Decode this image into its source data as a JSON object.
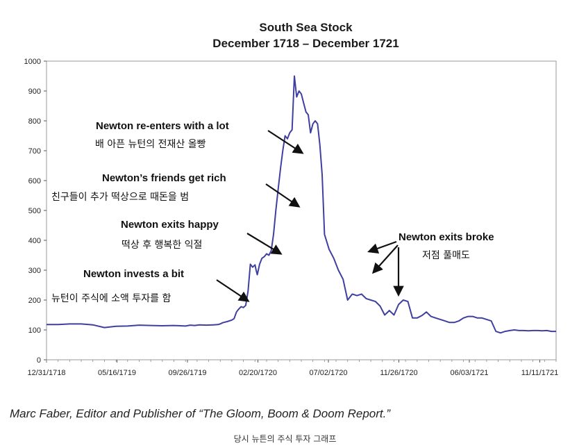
{
  "chart_data": {
    "type": "line",
    "title": "South Sea Stock",
    "subtitle": "December 1718 – December 1721",
    "xlabel": "",
    "ylabel": "",
    "ylim": [
      0,
      1000
    ],
    "yticks": [
      0,
      100,
      200,
      300,
      400,
      500,
      600,
      700,
      800,
      900,
      1000
    ],
    "xticks": [
      "12/31/1718",
      "05/16/1719",
      "09/26/1719",
      "02/20/1720",
      "07/02/1720",
      "11/26/1720",
      "06/03/1721",
      "11/11/1721"
    ],
    "grid": false,
    "line_color": "#3f3fa0",
    "series": [
      {
        "x": [
          0,
          0.5,
          1.0,
          1.5,
          2.0,
          2.5,
          3.0,
          3.5,
          4.0,
          4.5,
          5.0,
          5.5,
          6.0,
          6.2,
          6.4,
          6.6,
          6.9,
          7.2,
          7.4,
          7.5,
          7.6,
          7.7,
          7.8,
          8.0,
          8.1,
          8.2,
          8.3,
          8.4,
          8.5,
          8.6,
          8.7,
          8.8,
          8.9,
          9.0,
          9.05,
          9.1,
          9.2,
          9.3,
          9.4,
          9.5,
          9.6,
          9.7,
          9.8,
          9.9,
          10.0,
          10.1,
          10.2,
          10.3,
          10.4,
          10.5,
          10.6,
          10.7,
          10.8,
          10.9,
          11.0,
          11.1,
          11.2,
          11.3,
          11.4,
          11.5,
          11.6,
          11.7,
          11.8,
          11.9,
          12.0,
          12.2,
          12.4,
          12.6,
          12.8,
          13.0,
          13.2,
          13.4,
          13.6,
          13.8,
          14.0,
          14.2,
          14.4,
          14.6,
          14.8,
          15.0,
          15.2,
          15.4,
          15.6,
          15.8,
          16.0,
          16.2,
          16.4,
          16.6,
          16.8,
          17.0,
          17.2,
          17.4,
          17.6,
          17.8,
          18.0,
          18.2,
          18.4,
          18.6,
          18.8,
          19.0,
          19.2,
          19.4,
          19.6,
          19.8,
          20.0,
          20.2,
          20.4,
          20.6,
          20.8,
          21.0,
          21.2,
          21.4,
          21.6,
          21.8,
          22.0
        ],
        "values": [
          118,
          118,
          120,
          120,
          117,
          108,
          112,
          113,
          116,
          115,
          114,
          115,
          113,
          116,
          115,
          117,
          116,
          117,
          118,
          120,
          124,
          126,
          128,
          133,
          138,
          160,
          170,
          178,
          175,
          182,
          230,
          320,
          310,
          318,
          300,
          285,
          320,
          340,
          345,
          355,
          350,
          365,
          420,
          500,
          570,
          640,
          700,
          750,
          740,
          760,
          770,
          950,
          880,
          900,
          890,
          860,
          830,
          820,
          760,
          790,
          800,
          790,
          720,
          620,
          420,
          370,
          340,
          300,
          270,
          200,
          220,
          215,
          220,
          205,
          200,
          195,
          180,
          150,
          165,
          150,
          185,
          200,
          195,
          140,
          140,
          148,
          160,
          145,
          140,
          135,
          130,
          125,
          125,
          130,
          140,
          145,
          145,
          140,
          140,
          135,
          130,
          95,
          90,
          95,
          98,
          100,
          98,
          98,
          97,
          98,
          98,
          97,
          98,
          95,
          95
        ]
      }
    ],
    "annotations": [
      {
        "en": "Newton re-enters with a lot",
        "ko": "배 아픈 뉴턴의 전재산 올빵"
      },
      {
        "en": "Newton’s friends get rich",
        "ko": "친구들이 추가 떡상으로 때돈을 범"
      },
      {
        "en": "Newton exits happy",
        "ko": "떡상 후 행복한 익절"
      },
      {
        "en": "Newton invests a bit",
        "ko": "뉴턴이 주식에 소액 투자를 함"
      },
      {
        "en": "Newton exits broke",
        "ko": "저점 풀매도"
      }
    ]
  },
  "credit": "Marc Faber, Editor and Publisher of “The Gloom, Boom & Doom Report.”",
  "caption": "당시 뉴튼의 주식 투자 그래프"
}
